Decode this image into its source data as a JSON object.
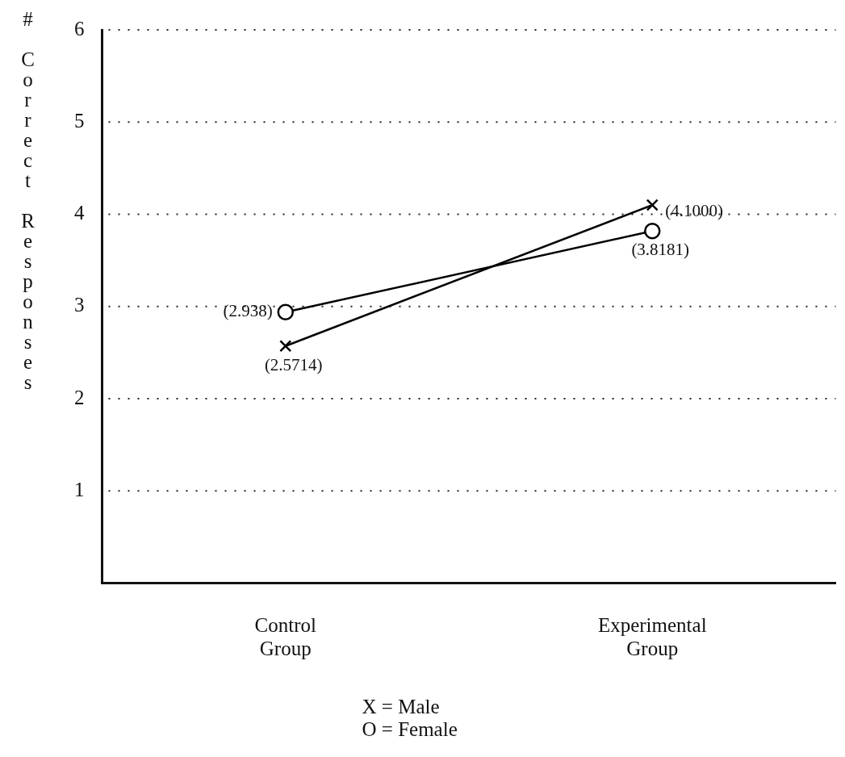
{
  "chart_data": {
    "type": "line",
    "ylabel": "# Correct Responses",
    "categories": [
      "Control\nGroup",
      "Experimental\nGroup"
    ],
    "series": [
      {
        "color": "#000000",
        "marker": "cross",
        "values": [
          2.5714,
          4.1
        ],
        "value_labels": [
          "(2.5714)",
          "(4.1000)"
        ]
      },
      {
        "color": "#000000",
        "marker": "circle",
        "values": [
          2.938,
          3.8181
        ],
        "value_labels": [
          "(2.938)",
          "(3.8181)"
        ]
      }
    ],
    "ylim": [
      0,
      6
    ],
    "yticks": [
      1,
      2,
      3,
      4,
      5,
      6
    ],
    "grid": "y",
    "annotations": [
      "X = Male",
      "O = Female"
    ]
  }
}
